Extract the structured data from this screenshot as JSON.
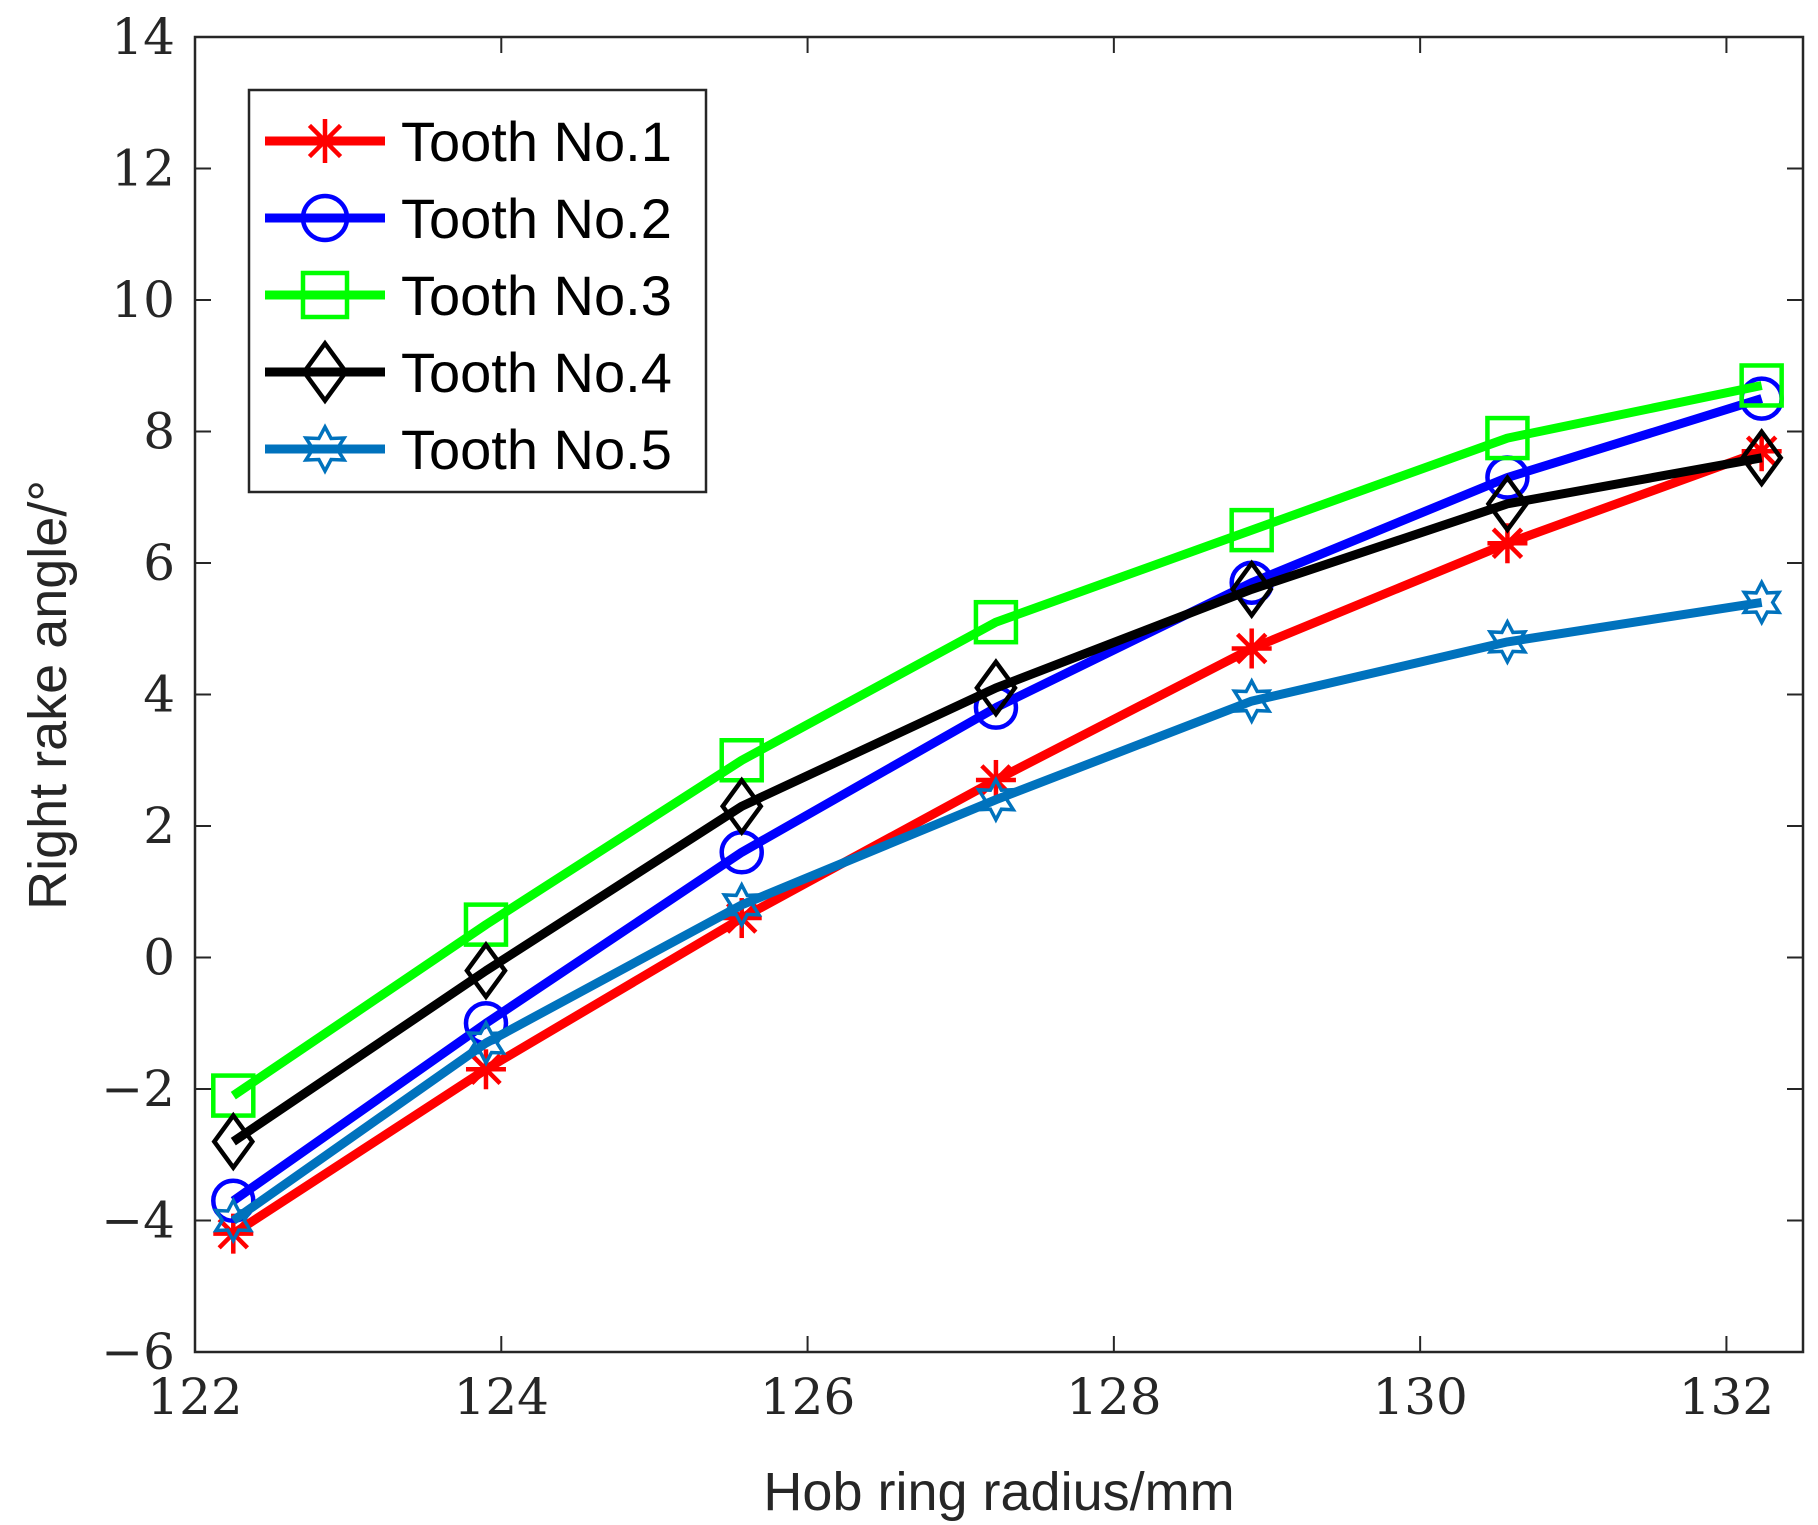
{
  "chart_data": {
    "type": "line",
    "title": "",
    "xlabel": "Hob ring radius/mm",
    "ylabel": "Right rake angle/°",
    "xlim": [
      122,
      132.5
    ],
    "ylim": [
      -6,
      14
    ],
    "grid": false,
    "legend_position": "top-left",
    "x_ticks": [
      122,
      124,
      126,
      128,
      130,
      132
    ],
    "x_tick_labels": [
      "122",
      "124",
      "126",
      "128",
      "130",
      "132"
    ],
    "y_ticks": [
      -6,
      -4,
      -2,
      0,
      2,
      4,
      6,
      8,
      10,
      12,
      14
    ],
    "y_tick_labels": [
      "−6",
      "−4",
      "−2",
      "0",
      "2",
      "4",
      "6",
      "8",
      "10",
      "12",
      "14"
    ],
    "x": [
      122.25,
      123.9,
      125.57,
      127.23,
      128.9,
      130.57,
      132.23
    ],
    "series": [
      {
        "name": "Tooth No.1",
        "color": "#ff0000",
        "marker": "asterisk",
        "values": [
          -4.2,
          -1.7,
          0.6,
          2.7,
          4.7,
          6.3,
          7.7
        ]
      },
      {
        "name": "Tooth No.2",
        "color": "#0000ff",
        "marker": "circle",
        "values": [
          -3.7,
          -1.0,
          1.6,
          3.8,
          5.7,
          7.3,
          8.5
        ]
      },
      {
        "name": "Tooth No.3",
        "color": "#00ff00",
        "marker": "square",
        "values": [
          -2.1,
          0.5,
          3.0,
          5.1,
          6.5,
          7.9,
          8.7
        ]
      },
      {
        "name": "Tooth No.4",
        "color": "#000000",
        "marker": "diamond",
        "values": [
          -2.8,
          -0.2,
          2.3,
          4.1,
          5.6,
          6.9,
          7.6
        ]
      },
      {
        "name": "Tooth No.5",
        "color": "#0072bd",
        "marker": "hexagram",
        "values": [
          -4.0,
          -1.3,
          0.8,
          2.4,
          3.9,
          4.8,
          5.4
        ]
      }
    ]
  }
}
